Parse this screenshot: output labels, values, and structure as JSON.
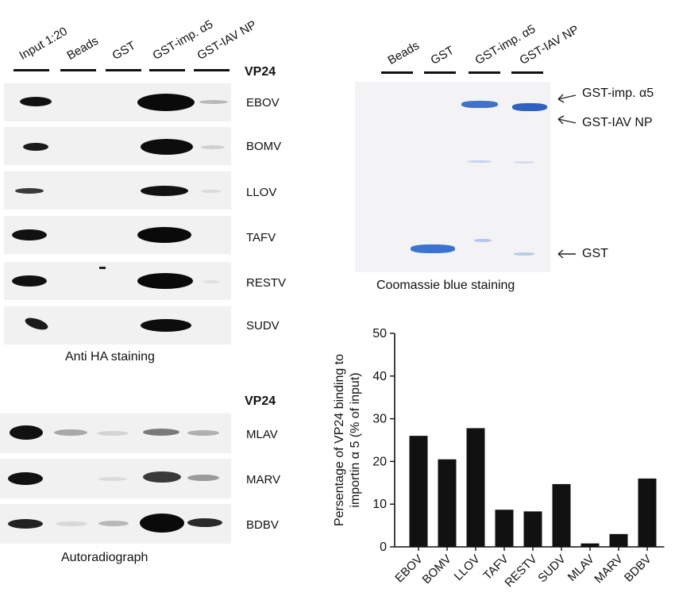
{
  "blot": {
    "lanes": [
      "Input 1:20",
      "Beads",
      "GST",
      "GST-imp. α5",
      "GST-IAV NP"
    ],
    "header_vp24": "VP24",
    "rows_top": [
      "EBOV",
      "BOMV",
      "LLOV",
      "TAFV",
      "RESTV",
      "SUDV"
    ],
    "caption_top": "Anti HA staining",
    "header_vp24_bottom": "VP24",
    "rows_bottom": [
      "MLAV",
      "MARV",
      "BDBV"
    ],
    "caption_bottom": "Autoradiograph"
  },
  "gel": {
    "lanes": [
      "Beads",
      "GST",
      "GST-imp. α5",
      "GST-IAV NP"
    ],
    "labels": [
      "GST-imp. α5",
      "GST-IAV NP",
      "GST"
    ],
    "caption": "Coomassie blue staining"
  },
  "chart_data": {
    "type": "bar",
    "categories": [
      "EBOV",
      "BOMV",
      "LLOV",
      "TAFV",
      "RESTV",
      "SUDV",
      "MLAV",
      "MARV",
      "BDBV"
    ],
    "values": [
      26,
      20.5,
      27.8,
      8.7,
      8.3,
      14.7,
      0.8,
      3,
      16
    ],
    "ylabel": "Persentage of VP24 binding to importin α 5 (% of input)",
    "ylim": [
      0,
      50
    ],
    "yticks": [
      0,
      10,
      20,
      30,
      40,
      50
    ],
    "bar_color": "#111111"
  }
}
